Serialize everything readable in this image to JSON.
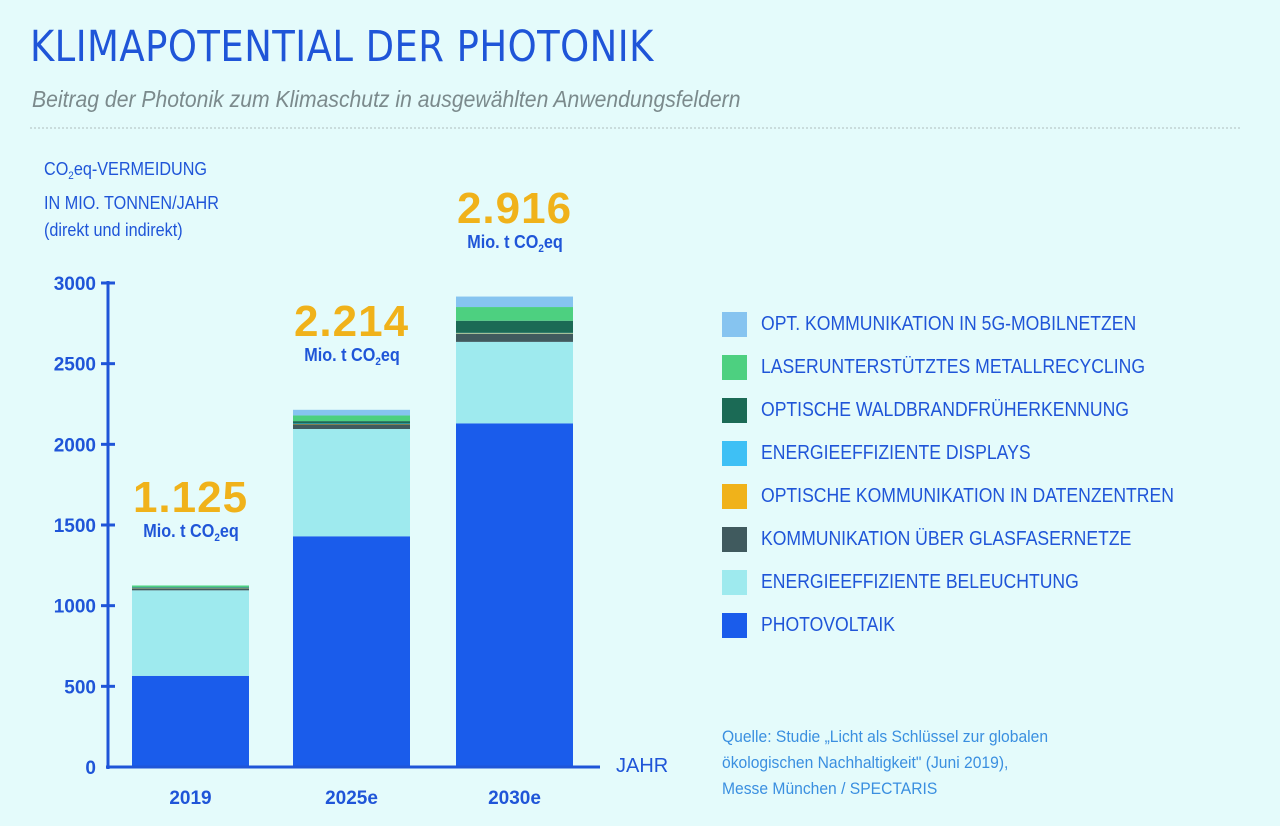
{
  "header": {
    "title": "KLIMAPOTENTIAL DER PHOTONIK",
    "subtitle": "Beitrag der Photonik zum Klimaschutz in ausgewählten Anwendungsfeldern"
  },
  "source": {
    "line1": "Quelle: Studie „Licht als Schlüssel zur globalen",
    "line2": "ökologischen Nachhaltigkeit\" (Juni 2019),",
    "line3": "Messe München / SPECTARIS"
  },
  "chart_data": {
    "type": "bar",
    "stacked": true,
    "title": "KLIMAPOTENTIAL DER PHOTONIK",
    "ylabel_parts": {
      "line1_pre": "CO",
      "line1_sub": "2",
      "line1_post": "eq-VERMEIDUNG",
      "line2": "IN MIO. TONNEN/JAHR",
      "line3": "(direkt und indirekt)"
    },
    "xlabel": "JAHR",
    "ylim": [
      0,
      3000
    ],
    "yticks": [
      0,
      500,
      1000,
      1500,
      2000,
      2500,
      3000
    ],
    "grid": false,
    "legend_position": "right",
    "categories": [
      "2019",
      "2025e",
      "2030e"
    ],
    "totals": [
      {
        "label": "1.125",
        "value": 1125,
        "unit_pre": "Mio. t CO",
        "unit_sub": "2",
        "unit_post": "eq"
      },
      {
        "label": "2.214",
        "value": 2214,
        "unit_pre": "Mio. t CO",
        "unit_sub": "2",
        "unit_post": "eq"
      },
      {
        "label": "2.916",
        "value": 2916,
        "unit_pre": "Mio. t CO",
        "unit_sub": "2",
        "unit_post": "eq"
      }
    ],
    "series": [
      {
        "name": "PHOTOVOLTAIK",
        "color": "#1a5ceb",
        "values": [
          565,
          1430,
          2130
        ]
      },
      {
        "name": "ENERGIEEFFIZIENTE BELEUCHTUNG",
        "color": "#9eeaee",
        "values": [
          530,
          665,
          505
        ]
      },
      {
        "name": "KOMMUNIKATION ÜBER GLASFASERNETZE",
        "color": "#405a5e",
        "values": [
          12,
          30,
          50
        ]
      },
      {
        "name": "OPTISCHE KOMMUNIKATION IN DATENZENTREN",
        "color": "#f0b21a",
        "values": [
          2,
          2,
          3
        ]
      },
      {
        "name": "ENERGIEEFFIZIENTE DISPLAYS",
        "color": "#3ec0f5",
        "values": [
          2,
          2,
          3
        ]
      },
      {
        "name": "OPTISCHE WALDBRANDFRÜHERKENNUNG",
        "color": "#1b6a55",
        "values": [
          4,
          15,
          75
        ]
      },
      {
        "name": "LASERUNTERSTÜTZTES METALLRECYCLING",
        "color": "#4dd080",
        "values": [
          10,
          35,
          85
        ]
      },
      {
        "name": "OPT. KOMMUNIKATION IN 5G-MOBILNETZEN",
        "color": "#86c4f0",
        "values": [
          0,
          35,
          65
        ]
      }
    ],
    "legend_order": [
      7,
      6,
      5,
      4,
      3,
      2,
      1,
      0
    ]
  },
  "colors": {
    "accent": "#1f55d8",
    "highlight": "#f0b21a",
    "background": "#e4fbfb"
  }
}
